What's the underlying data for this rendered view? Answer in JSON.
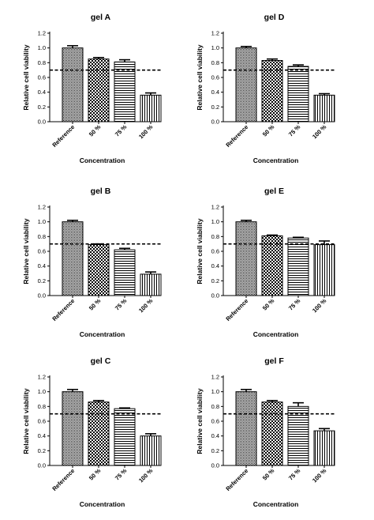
{
  "chart_data": [
    {
      "type": "bar",
      "title": "gel A",
      "xlabel": "Concentration",
      "ylabel": "Relative cell viability",
      "categories": [
        "Reference",
        "50 %",
        "75 %",
        "100 %"
      ],
      "values": [
        1.0,
        0.85,
        0.81,
        0.36
      ],
      "errors": [
        0.03,
        0.02,
        0.03,
        0.03
      ],
      "threshold": 0.7,
      "ylim": [
        0,
        1.2
      ],
      "yticks": [
        "0.0",
        "0.2",
        "0.4",
        "0.6",
        "0.8",
        "1.0",
        "1.2"
      ],
      "grid": false,
      "bar_patterns": [
        "dense-dots",
        "checker",
        "horizontal-lines",
        "vertical-lines"
      ]
    },
    {
      "type": "bar",
      "title": "gel D",
      "xlabel": "Concentration",
      "ylabel": "Relative cell viability",
      "categories": [
        "Reference",
        "50 %",
        "75 %",
        "100 %"
      ],
      "values": [
        1.0,
        0.83,
        0.75,
        0.36
      ],
      "errors": [
        0.02,
        0.02,
        0.02,
        0.02
      ],
      "threshold": 0.7,
      "ylim": [
        0,
        1.2
      ],
      "yticks": [
        "0.0",
        "0.2",
        "0.4",
        "0.6",
        "0.8",
        "1.0",
        "1.2"
      ],
      "grid": false,
      "bar_patterns": [
        "dense-dots",
        "checker",
        "horizontal-lines",
        "vertical-lines"
      ]
    },
    {
      "type": "bar",
      "title": "gel B",
      "xlabel": "Concentration",
      "ylabel": "Relative cell viability",
      "categories": [
        "Reference",
        "50 %",
        "75 %",
        "100 %"
      ],
      "values": [
        1.0,
        0.69,
        0.62,
        0.29
      ],
      "errors": [
        0.02,
        0.01,
        0.02,
        0.03
      ],
      "threshold": 0.7,
      "ylim": [
        0,
        1.2
      ],
      "yticks": [
        "0.0",
        "0.2",
        "0.4",
        "0.6",
        "0.8",
        "1.0",
        "1.2"
      ],
      "grid": false,
      "bar_patterns": [
        "dense-dots",
        "checker",
        "horizontal-lines",
        "vertical-lines"
      ]
    },
    {
      "type": "bar",
      "title": "gel E",
      "xlabel": "Concentration",
      "ylabel": "Relative cell viability",
      "categories": [
        "Reference",
        "50 %",
        "75 %",
        "100 %"
      ],
      "values": [
        1.0,
        0.81,
        0.78,
        0.69
      ],
      "errors": [
        0.02,
        0.01,
        0.01,
        0.05
      ],
      "threshold": 0.7,
      "ylim": [
        0,
        1.2
      ],
      "yticks": [
        "0.0",
        "0.2",
        "0.4",
        "0.6",
        "0.8",
        "1.0",
        "1.2"
      ],
      "grid": false,
      "bar_patterns": [
        "dense-dots",
        "checker",
        "horizontal-lines",
        "vertical-lines"
      ]
    },
    {
      "type": "bar",
      "title": "gel C",
      "xlabel": "Concentration",
      "ylabel": "Relative cell viability",
      "categories": [
        "Reference",
        "50 %",
        "75 %",
        "100 %"
      ],
      "values": [
        1.0,
        0.86,
        0.77,
        0.4
      ],
      "errors": [
        0.03,
        0.02,
        0.01,
        0.03
      ],
      "threshold": 0.7,
      "ylim": [
        0,
        1.2
      ],
      "yticks": [
        "0.0",
        "0.2",
        "0.4",
        "0.6",
        "0.8",
        "1.0",
        "1.2"
      ],
      "grid": false,
      "bar_patterns": [
        "dense-dots",
        "checker",
        "horizontal-lines",
        "vertical-lines"
      ]
    },
    {
      "type": "bar",
      "title": "gel F",
      "xlabel": "Concentration",
      "ylabel": "Relative cell viability",
      "categories": [
        "Reference",
        "50 %",
        "75 %",
        "100 %"
      ],
      "values": [
        1.0,
        0.86,
        0.8,
        0.47
      ],
      "errors": [
        0.03,
        0.02,
        0.05,
        0.03
      ],
      "threshold": 0.7,
      "ylim": [
        0,
        1.2
      ],
      "yticks": [
        "0.0",
        "0.2",
        "0.4",
        "0.6",
        "0.8",
        "1.0",
        "1.2"
      ],
      "grid": false,
      "bar_patterns": [
        "dense-dots",
        "checker",
        "horizontal-lines",
        "vertical-lines"
      ]
    }
  ]
}
